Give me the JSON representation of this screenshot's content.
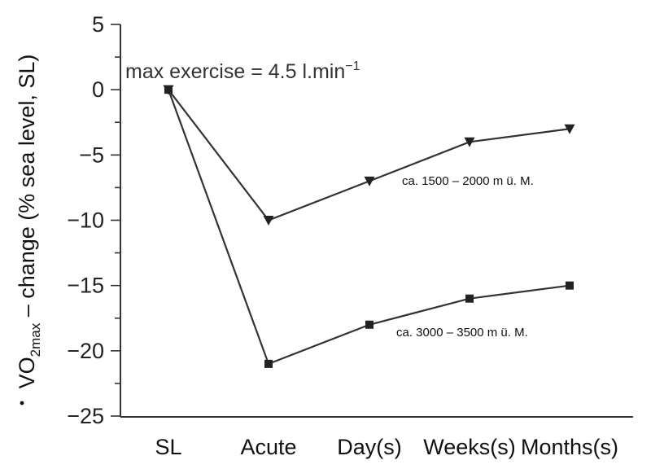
{
  "chart_data": {
    "type": "line",
    "ylabel": {
      "prefix": "VO",
      "subscript": "2max",
      "suffix": " – change (% sea level, SL)"
    },
    "categories": [
      "SL",
      "Acute",
      "Day(s)",
      "Weeks(s)",
      "Months(s)"
    ],
    "ylim": [
      -25,
      5
    ],
    "yticks": [
      5,
      0,
      -5,
      -10,
      -15,
      -20,
      -25
    ],
    "ytick_labels": [
      "5",
      "0",
      "−5",
      "−10",
      "−15",
      "−20",
      "−25"
    ],
    "annotation": {
      "text": "max exercise = 4.5 l.min",
      "superscript": "−1"
    },
    "series": [
      {
        "name": "ca. 1500 – 2000 m ü. M.",
        "marker": "triangle-down",
        "values": [
          0,
          -10,
          -7,
          -4,
          -3
        ]
      },
      {
        "name": "ca. 3000 – 3500 m ü. M.",
        "marker": "square",
        "values": [
          0,
          -21,
          -18,
          -16,
          -15
        ]
      }
    ],
    "grid": false,
    "legend": "inline labels"
  }
}
